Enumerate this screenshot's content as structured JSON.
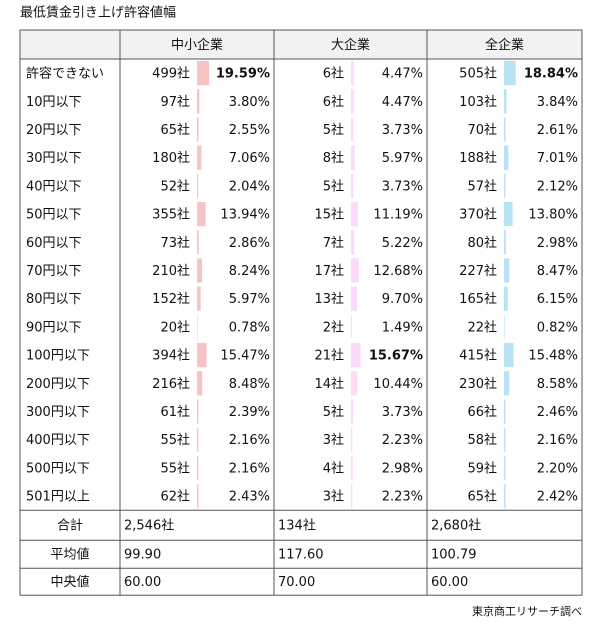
{
  "title": "最低賃金引き上げ許容値幅",
  "groups": [
    {
      "name": "中小企業",
      "color": "#f7c4c6"
    },
    {
      "name": "大企業",
      "color": "#fbdcf8"
    },
    {
      "name": "全企業",
      "color": "#b9e2f5"
    }
  ],
  "rows": [
    {
      "label": "許容できない",
      "cells": [
        {
          "count": "499社",
          "pct": {
            "value": 19.59,
            "label": "19.59%"
          }
        },
        {
          "count": "6社",
          "pct": {
            "value": 4.47,
            "label": "4.47%"
          }
        },
        {
          "count": "505社",
          "pct": {
            "value": 18.84,
            "label": "18.84%"
          }
        }
      ]
    },
    {
      "label": "10円以下",
      "cells": [
        {
          "count": "97社",
          "pct": {
            "value": 3.8,
            "label": "3.80%"
          }
        },
        {
          "count": "6社",
          "pct": {
            "value": 4.47,
            "label": "4.47%"
          }
        },
        {
          "count": "103社",
          "pct": {
            "value": 3.84,
            "label": "3.84%"
          }
        }
      ]
    },
    {
      "label": "20円以下",
      "cells": [
        {
          "count": "65社",
          "pct": {
            "value": 2.55,
            "label": "2.55%"
          }
        },
        {
          "count": "5社",
          "pct": {
            "value": 3.73,
            "label": "3.73%"
          }
        },
        {
          "count": "70社",
          "pct": {
            "value": 2.61,
            "label": "2.61%"
          }
        }
      ]
    },
    {
      "label": "30円以下",
      "cells": [
        {
          "count": "180社",
          "pct": {
            "value": 7.06,
            "label": "7.06%"
          }
        },
        {
          "count": "8社",
          "pct": {
            "value": 5.97,
            "label": "5.97%"
          }
        },
        {
          "count": "188社",
          "pct": {
            "value": 7.01,
            "label": "7.01%"
          }
        }
      ]
    },
    {
      "label": "40円以下",
      "cells": [
        {
          "count": "52社",
          "pct": {
            "value": 2.04,
            "label": "2.04%"
          }
        },
        {
          "count": "5社",
          "pct": {
            "value": 3.73,
            "label": "3.73%"
          }
        },
        {
          "count": "57社",
          "pct": {
            "value": 2.12,
            "label": "2.12%"
          }
        }
      ]
    },
    {
      "label": "50円以下",
      "cells": [
        {
          "count": "355社",
          "pct": {
            "value": 13.94,
            "label": "13.94%"
          }
        },
        {
          "count": "15社",
          "pct": {
            "value": 11.19,
            "label": "11.19%"
          }
        },
        {
          "count": "370社",
          "pct": {
            "value": 13.8,
            "label": "13.80%"
          }
        }
      ]
    },
    {
      "label": "60円以下",
      "cells": [
        {
          "count": "73社",
          "pct": {
            "value": 2.86,
            "label": "2.86%"
          }
        },
        {
          "count": "7社",
          "pct": {
            "value": 5.22,
            "label": "5.22%"
          }
        },
        {
          "count": "80社",
          "pct": {
            "value": 2.98,
            "label": "2.98%"
          }
        }
      ]
    },
    {
      "label": "70円以下",
      "cells": [
        {
          "count": "210社",
          "pct": {
            "value": 8.24,
            "label": "8.24%"
          }
        },
        {
          "count": "17社",
          "pct": {
            "value": 12.68,
            "label": "12.68%"
          }
        },
        {
          "count": "227社",
          "pct": {
            "value": 8.47,
            "label": "8.47%"
          }
        }
      ]
    },
    {
      "label": "80円以下",
      "cells": [
        {
          "count": "152社",
          "pct": {
            "value": 5.97,
            "label": "5.97%"
          }
        },
        {
          "count": "13社",
          "pct": {
            "value": 9.7,
            "label": "9.70%"
          }
        },
        {
          "count": "165社",
          "pct": {
            "value": 6.15,
            "label": "6.15%"
          }
        }
      ]
    },
    {
      "label": "90円以下",
      "cells": [
        {
          "count": "20社",
          "pct": {
            "value": 0.78,
            "label": "0.78%"
          }
        },
        {
          "count": "2社",
          "pct": {
            "value": 1.49,
            "label": "1.49%"
          }
        },
        {
          "count": "22社",
          "pct": {
            "value": 0.82,
            "label": "0.82%"
          }
        }
      ]
    },
    {
      "label": "100円以下",
      "cells": [
        {
          "count": "394社",
          "pct": {
            "value": 15.47,
            "label": "15.47%"
          }
        },
        {
          "count": "21社",
          "pct": {
            "value": 15.67,
            "label": "15.67%"
          }
        },
        {
          "count": "415社",
          "pct": {
            "value": 15.48,
            "label": "15.48%"
          }
        }
      ]
    },
    {
      "label": "200円以下",
      "cells": [
        {
          "count": "216社",
          "pct": {
            "value": 8.48,
            "label": "8.48%"
          }
        },
        {
          "count": "14社",
          "pct": {
            "value": 10.44,
            "label": "10.44%"
          }
        },
        {
          "count": "230社",
          "pct": {
            "value": 8.58,
            "label": "8.58%"
          }
        }
      ]
    },
    {
      "label": "300円以下",
      "cells": [
        {
          "count": "61社",
          "pct": {
            "value": 2.39,
            "label": "2.39%"
          }
        },
        {
          "count": "5社",
          "pct": {
            "value": 3.73,
            "label": "3.73%"
          }
        },
        {
          "count": "66社",
          "pct": {
            "value": 2.46,
            "label": "2.46%"
          }
        }
      ]
    },
    {
      "label": "400円以下",
      "cells": [
        {
          "count": "55社",
          "pct": {
            "value": 2.16,
            "label": "2.16%"
          }
        },
        {
          "count": "3社",
          "pct": {
            "value": 2.23,
            "label": "2.23%"
          }
        },
        {
          "count": "58社",
          "pct": {
            "value": 2.16,
            "label": "2.16%"
          }
        }
      ]
    },
    {
      "label": "500円以下",
      "cells": [
        {
          "count": "55社",
          "pct": {
            "value": 2.16,
            "label": "2.16%"
          }
        },
        {
          "count": "4社",
          "pct": {
            "value": 2.98,
            "label": "2.98%"
          }
        },
        {
          "count": "59社",
          "pct": {
            "value": 2.2,
            "label": "2.20%"
          }
        }
      ]
    },
    {
      "label": "501円以上",
      "cells": [
        {
          "count": "62社",
          "pct": {
            "value": 2.43,
            "label": "2.43%"
          }
        },
        {
          "count": "3社",
          "pct": {
            "value": 2.23,
            "label": "2.23%"
          }
        },
        {
          "count": "65社",
          "pct": {
            "value": 2.42,
            "label": "2.42%"
          }
        }
      ]
    }
  ],
  "summary": [
    {
      "label": "合計",
      "values": [
        "2,546社",
        "134社",
        "2,680社"
      ]
    },
    {
      "label": "平均値",
      "values": [
        "99.90",
        "117.60",
        "100.79"
      ]
    },
    {
      "label": "中央値",
      "values": [
        "60.00",
        "70.00",
        "60.00"
      ]
    }
  ],
  "source": "東京商工リサーチ調べ"
}
